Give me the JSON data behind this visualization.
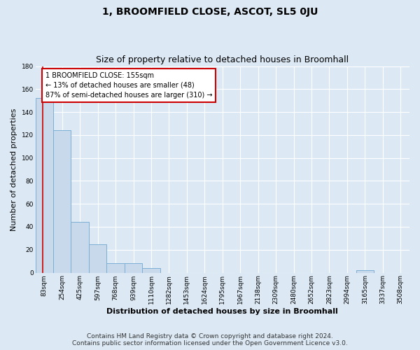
{
  "title": "1, BROOMFIELD CLOSE, ASCOT, SL5 0JU",
  "subtitle": "Size of property relative to detached houses in Broomhall",
  "xlabel": "Distribution of detached houses by size in Broomhall",
  "ylabel": "Number of detached properties",
  "bin_labels": [
    "83sqm",
    "254sqm",
    "425sqm",
    "597sqm",
    "768sqm",
    "939sqm",
    "1110sqm",
    "1282sqm",
    "1453sqm",
    "1624sqm",
    "1795sqm",
    "1967sqm",
    "2138sqm",
    "2309sqm",
    "2480sqm",
    "2652sqm",
    "2823sqm",
    "2994sqm",
    "3165sqm",
    "3337sqm",
    "3508sqm"
  ],
  "bar_heights": [
    152,
    124,
    44,
    25,
    8,
    8,
    4,
    0,
    0,
    0,
    0,
    0,
    0,
    0,
    0,
    0,
    0,
    0,
    2,
    0,
    0
  ],
  "bar_color": "#c9d9ec",
  "bar_edge_color": "#7bafd4",
  "background_color": "#dce9f5",
  "grid_color": "#ffffff",
  "annotation_text": "1 BROOMFIELD CLOSE: 155sqm\n← 13% of detached houses are smaller (48)\n87% of semi-detached houses are larger (310) →",
  "annotation_box_color": "#ffffff",
  "annotation_box_edge_color": "#cc0000",
  "ylim": [
    0,
    180
  ],
  "yticks": [
    0,
    20,
    40,
    60,
    80,
    100,
    120,
    140,
    160,
    180
  ],
  "footer_line1": "Contains HM Land Registry data © Crown copyright and database right 2024.",
  "footer_line2": "Contains public sector information licensed under the Open Government Licence v3.0.",
  "title_fontsize": 10,
  "subtitle_fontsize": 9,
  "ylabel_fontsize": 8,
  "xlabel_fontsize": 8,
  "tick_fontsize": 6.5,
  "annotation_fontsize": 7,
  "footer_fontsize": 6.5,
  "prop_size_sqm": 155,
  "bin_edges": [
    83,
    254,
    425,
    597,
    768,
    939,
    1110,
    1282,
    1453,
    1624,
    1795,
    1967,
    2138,
    2309,
    2480,
    2652,
    2823,
    2994,
    3165,
    3337,
    3508
  ]
}
